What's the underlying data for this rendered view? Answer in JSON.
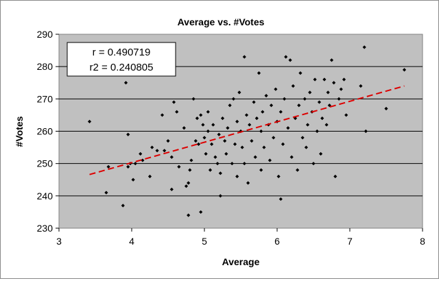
{
  "chart_data": {
    "type": "scatter",
    "title": "Average vs. #Votes",
    "xlabel": "Average",
    "ylabel": "#Votes",
    "xlim": [
      3,
      8
    ],
    "ylim": [
      230,
      290
    ],
    "x_ticks": [
      "3",
      "4",
      "5",
      "6",
      "7",
      "8"
    ],
    "y_ticks": [
      "230",
      "240",
      "250",
      "260",
      "270",
      "280",
      "290"
    ],
    "grid": "horizontal",
    "stats": {
      "r_label": "r = 0.490719",
      "r2_label": "r2 = 0.240805"
    },
    "trendline": {
      "x": [
        3.42,
        7.75
      ],
      "y": [
        246.6,
        274.0
      ],
      "color": "#dd0000",
      "style": "dashed"
    },
    "plot_background": "#c0c0c0",
    "point_color": "#000000",
    "points": [
      [
        3.42,
        263
      ],
      [
        3.65,
        241
      ],
      [
        3.68,
        249
      ],
      [
        3.88,
        237
      ],
      [
        3.92,
        275
      ],
      [
        3.95,
        259
      ],
      [
        3.95,
        249
      ],
      [
        3.98,
        250
      ],
      [
        4.02,
        245
      ],
      [
        4.05,
        250
      ],
      [
        4.12,
        253
      ],
      [
        4.15,
        251
      ],
      [
        4.25,
        246
      ],
      [
        4.28,
        255
      ],
      [
        4.35,
        254
      ],
      [
        4.42,
        265
      ],
      [
        4.45,
        254
      ],
      [
        4.5,
        257
      ],
      [
        4.55,
        252
      ],
      [
        4.55,
        242
      ],
      [
        4.58,
        269
      ],
      [
        4.62,
        266
      ],
      [
        4.65,
        249
      ],
      [
        4.72,
        261
      ],
      [
        4.75,
        243
      ],
      [
        4.78,
        244
      ],
      [
        4.78,
        234
      ],
      [
        4.8,
        248
      ],
      [
        4.82,
        251
      ],
      [
        4.85,
        270
      ],
      [
        4.88,
        257
      ],
      [
        4.9,
        264
      ],
      [
        4.92,
        256
      ],
      [
        4.95,
        235
      ],
      [
        4.95,
        265
      ],
      [
        4.98,
        262
      ],
      [
        5.0,
        258
      ],
      [
        5.02,
        253
      ],
      [
        5.05,
        266
      ],
      [
        5.05,
        260
      ],
      [
        5.08,
        248
      ],
      [
        5.1,
        256
      ],
      [
        5.12,
        262
      ],
      [
        5.15,
        252
      ],
      [
        5.18,
        250
      ],
      [
        5.2,
        259
      ],
      [
        5.22,
        247
      ],
      [
        5.22,
        240
      ],
      [
        5.25,
        264
      ],
      [
        5.28,
        257
      ],
      [
        5.3,
        253
      ],
      [
        5.32,
        261
      ],
      [
        5.35,
        268
      ],
      [
        5.38,
        250
      ],
      [
        5.4,
        270
      ],
      [
        5.42,
        256
      ],
      [
        5.45,
        263
      ],
      [
        5.45,
        246
      ],
      [
        5.48,
        272
      ],
      [
        5.5,
        260
      ],
      [
        5.52,
        255
      ],
      [
        5.55,
        283
      ],
      [
        5.55,
        250
      ],
      [
        5.58,
        265
      ],
      [
        5.6,
        244
      ],
      [
        5.62,
        262
      ],
      [
        5.65,
        257
      ],
      [
        5.68,
        269
      ],
      [
        5.7,
        252
      ],
      [
        5.72,
        264
      ],
      [
        5.75,
        278
      ],
      [
        5.78,
        260
      ],
      [
        5.78,
        248
      ],
      [
        5.8,
        266
      ],
      [
        5.82,
        255
      ],
      [
        5.85,
        271
      ],
      [
        5.88,
        262
      ],
      [
        5.9,
        251
      ],
      [
        5.92,
        268
      ],
      [
        5.95,
        258
      ],
      [
        5.98,
        273
      ],
      [
        6.0,
        263
      ],
      [
        6.02,
        246
      ],
      [
        6.05,
        266
      ],
      [
        6.05,
        239
      ],
      [
        6.08,
        256
      ],
      [
        6.1,
        270
      ],
      [
        6.12,
        283
      ],
      [
        6.15,
        261
      ],
      [
        6.18,
        282
      ],
      [
        6.2,
        252
      ],
      [
        6.22,
        274
      ],
      [
        6.25,
        264
      ],
      [
        6.28,
        248
      ],
      [
        6.3,
        268
      ],
      [
        6.32,
        278
      ],
      [
        6.35,
        258
      ],
      [
        6.38,
        270
      ],
      [
        6.4,
        255
      ],
      [
        6.42,
        262
      ],
      [
        6.45,
        272
      ],
      [
        6.48,
        266
      ],
      [
        6.5,
        250
      ],
      [
        6.52,
        276
      ],
      [
        6.55,
        260
      ],
      [
        6.58,
        269
      ],
      [
        6.6,
        253
      ],
      [
        6.62,
        264
      ],
      [
        6.65,
        276
      ],
      [
        6.68,
        262
      ],
      [
        6.7,
        272
      ],
      [
        6.72,
        268
      ],
      [
        6.75,
        282
      ],
      [
        6.78,
        275
      ],
      [
        6.8,
        246
      ],
      [
        6.85,
        270
      ],
      [
        6.88,
        273
      ],
      [
        6.92,
        276
      ],
      [
        6.95,
        265
      ],
      [
        7.15,
        274
      ],
      [
        7.2,
        286
      ],
      [
        7.22,
        260
      ],
      [
        7.5,
        267
      ],
      [
        7.75,
        279
      ]
    ]
  }
}
